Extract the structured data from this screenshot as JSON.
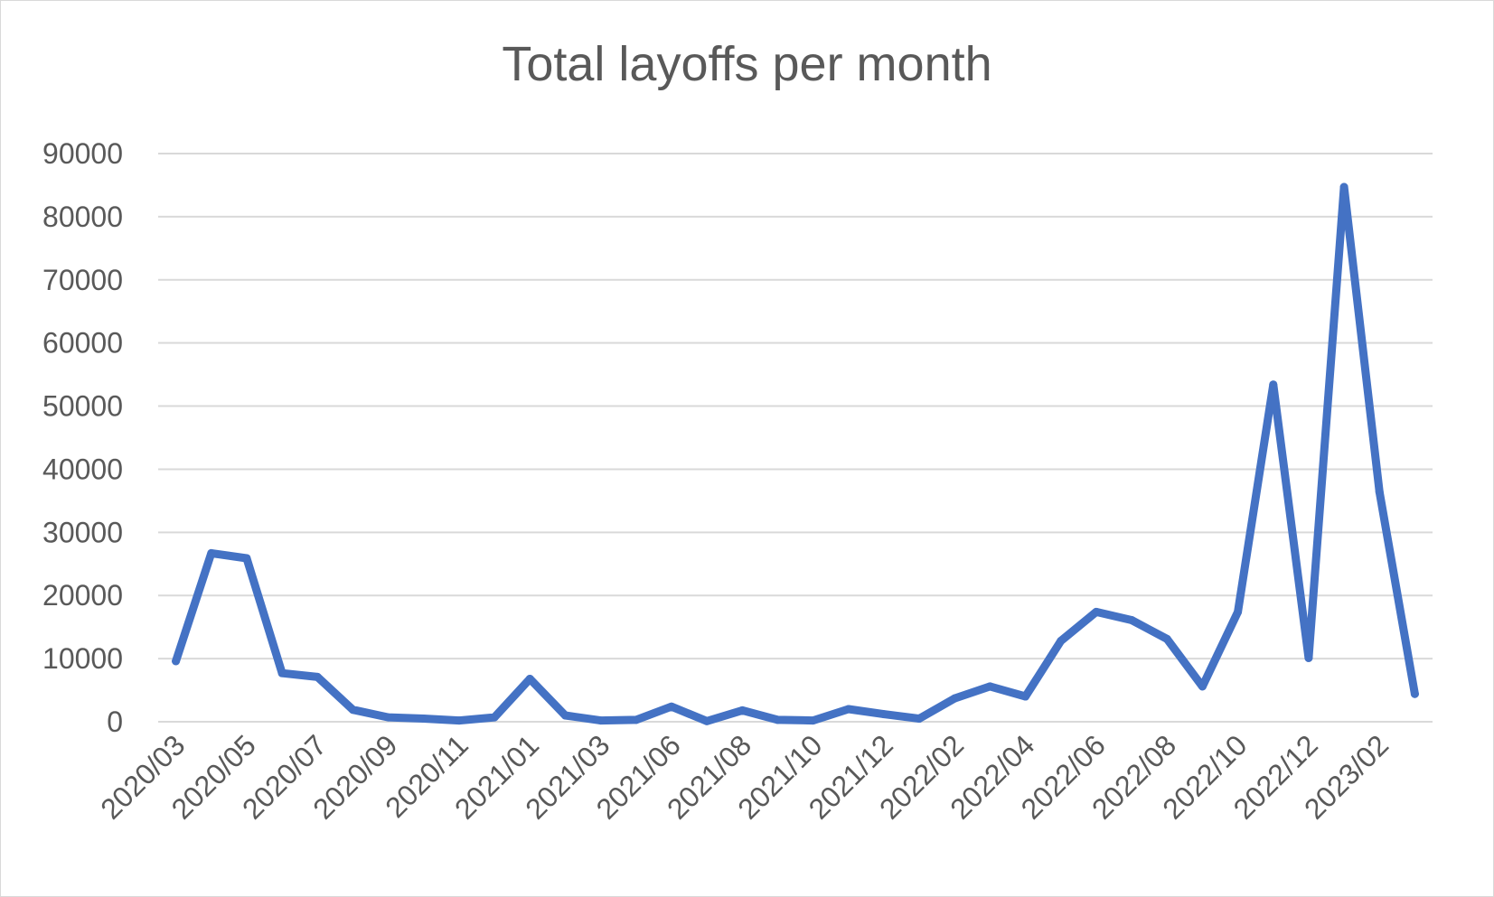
{
  "chart_data": {
    "type": "line",
    "title": "Total layoffs per month",
    "xlabel": "",
    "ylabel": "",
    "ylim": [
      0,
      90000
    ],
    "yticks": [
      0,
      10000,
      20000,
      30000,
      40000,
      50000,
      60000,
      70000,
      80000,
      90000
    ],
    "grid": true,
    "legend": "none",
    "line_color": "#4472c4",
    "x_tick_labels": [
      "2020/03",
      "2020/05",
      "2020/07",
      "2020/09",
      "2020/11",
      "2021/01",
      "2021/03",
      "2021/06",
      "2021/08",
      "2021/10",
      "2021/12",
      "2022/02",
      "2022/04",
      "2022/06",
      "2022/08",
      "2022/10",
      "2022/12",
      "2023/02"
    ],
    "series": [
      {
        "values": [
          9600,
          26700,
          25900,
          7700,
          7100,
          1900,
          700,
          500,
          200,
          700,
          6800,
          1000,
          200,
          300,
          2400,
          100,
          1800,
          300,
          200,
          2000,
          1200,
          500,
          3700,
          5600,
          4000,
          12800,
          17400,
          16100,
          13100,
          5600,
          17400,
          53400,
          10100,
          84700,
          36400,
          4400
        ]
      }
    ]
  }
}
